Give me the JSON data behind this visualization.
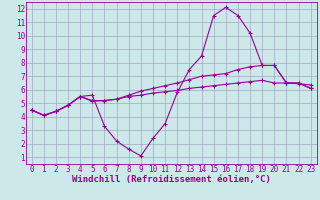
{
  "xlabel": "Windchill (Refroidissement éolien,°C)",
  "bg_color": "#cce8e8",
  "line_color": "#990099",
  "grid_color": "#9999bb",
  "xlim": [
    -0.5,
    23.5
  ],
  "ylim": [
    0.5,
    12.5
  ],
  "xticks": [
    0,
    1,
    2,
    3,
    4,
    5,
    6,
    7,
    8,
    9,
    10,
    11,
    12,
    13,
    14,
    15,
    16,
    17,
    18,
    19,
    20,
    21,
    22,
    23
  ],
  "yticks": [
    1,
    2,
    3,
    4,
    5,
    6,
    7,
    8,
    9,
    10,
    11,
    12
  ],
  "series1_x": [
    0,
    1,
    2,
    3,
    4,
    5,
    6,
    7,
    8,
    9,
    10,
    11,
    12,
    13,
    14,
    15,
    16,
    17,
    18,
    19,
    20,
    21,
    22,
    23
  ],
  "series1_y": [
    4.5,
    4.1,
    4.4,
    4.85,
    5.5,
    5.15,
    5.2,
    5.3,
    5.5,
    5.6,
    5.75,
    5.85,
    5.95,
    6.1,
    6.2,
    6.3,
    6.4,
    6.5,
    6.6,
    6.7,
    6.5,
    6.5,
    6.45,
    6.35
  ],
  "series2_x": [
    0,
    1,
    2,
    3,
    4,
    5,
    6,
    7,
    8,
    9,
    10,
    11,
    12,
    13,
    14,
    15,
    16,
    17,
    18,
    19,
    20,
    21,
    22,
    23
  ],
  "series2_y": [
    4.5,
    4.1,
    4.4,
    4.85,
    5.5,
    5.6,
    3.3,
    2.2,
    1.6,
    1.1,
    2.4,
    3.5,
    5.8,
    7.5,
    8.5,
    11.5,
    12.1,
    11.5,
    10.2,
    7.8,
    7.8,
    6.5,
    6.5,
    6.1
  ],
  "series3_x": [
    0,
    1,
    2,
    3,
    4,
    5,
    6,
    7,
    8,
    9,
    10,
    11,
    12,
    13,
    14,
    15,
    16,
    17,
    18,
    19,
    20,
    21,
    22,
    23
  ],
  "series3_y": [
    4.5,
    4.1,
    4.4,
    4.85,
    5.5,
    5.2,
    5.2,
    5.3,
    5.6,
    5.9,
    6.1,
    6.3,
    6.5,
    6.75,
    7.0,
    7.1,
    7.2,
    7.5,
    7.7,
    7.8,
    7.8,
    6.5,
    6.5,
    6.1
  ],
  "marker": "+",
  "markersize": 3,
  "markeredgewidth": 0.8,
  "linewidth": 0.8,
  "xlabel_fontsize": 6.5,
  "tick_fontsize": 5.5
}
